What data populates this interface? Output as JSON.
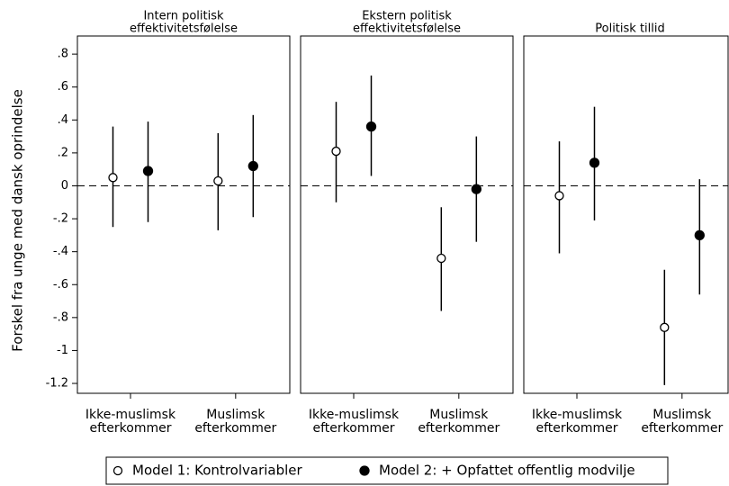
{
  "chart_data": {
    "type": "dot-errorbar",
    "ylabel": "Forskel fra unge med dansk oprindelse",
    "ylim": [
      -1.26,
      0.91
    ],
    "yticks": [
      {
        "value": 0.8,
        "label": ".8"
      },
      {
        "value": 0.6,
        "label": ".6"
      },
      {
        "value": 0.4,
        "label": ".4"
      },
      {
        "value": 0.2,
        "label": ".2"
      },
      0,
      {
        "value": -0.2,
        "label": "-.2"
      },
      {
        "value": -0.4,
        "label": "-.4"
      },
      {
        "value": -0.6,
        "label": "-.6"
      },
      {
        "value": -0.8,
        "label": "-.8"
      },
      -1,
      {
        "value": -1.2,
        "label": "-1.2"
      }
    ],
    "reference_line": 0,
    "categories": [
      [
        "Ikke-muslimsk",
        "efterkommer"
      ],
      [
        "Muslimsk",
        "efterkommer"
      ]
    ],
    "series": [
      {
        "name": "Model 1: Kontrolvariabler",
        "color": "#000000",
        "marker": "open"
      },
      {
        "name": "Model 2: + Opfattet offentlig modvilje",
        "color": "#000000",
        "marker": "filled"
      }
    ],
    "panels": [
      {
        "title": [
          "Intern politisk",
          "effektivitetsfølelse"
        ],
        "series": [
          {
            "values": [
              0.05,
              0.03
            ],
            "lower": [
              -0.25,
              -0.27
            ],
            "upper": [
              0.36,
              0.32
            ]
          },
          {
            "values": [
              0.09,
              0.12
            ],
            "lower": [
              -0.22,
              -0.19
            ],
            "upper": [
              0.39,
              0.43
            ]
          }
        ]
      },
      {
        "title": [
          "Ekstern politisk",
          "effektivitetsfølelse"
        ],
        "series": [
          {
            "values": [
              0.21,
              -0.44
            ],
            "lower": [
              -0.1,
              -0.76
            ],
            "upper": [
              0.51,
              -0.13
            ]
          },
          {
            "values": [
              0.36,
              -0.02
            ],
            "lower": [
              0.06,
              -0.34
            ],
            "upper": [
              0.67,
              0.3
            ]
          }
        ]
      },
      {
        "title": [
          "Politisk tillid"
        ],
        "series": [
          {
            "values": [
              -0.06,
              -0.86
            ],
            "lower": [
              -0.41,
              -1.21
            ],
            "upper": [
              0.27,
              -0.51
            ]
          },
          {
            "values": [
              0.14,
              -0.3
            ],
            "lower": [
              -0.21,
              -0.66
            ],
            "upper": [
              0.48,
              0.04
            ]
          }
        ]
      }
    ]
  }
}
